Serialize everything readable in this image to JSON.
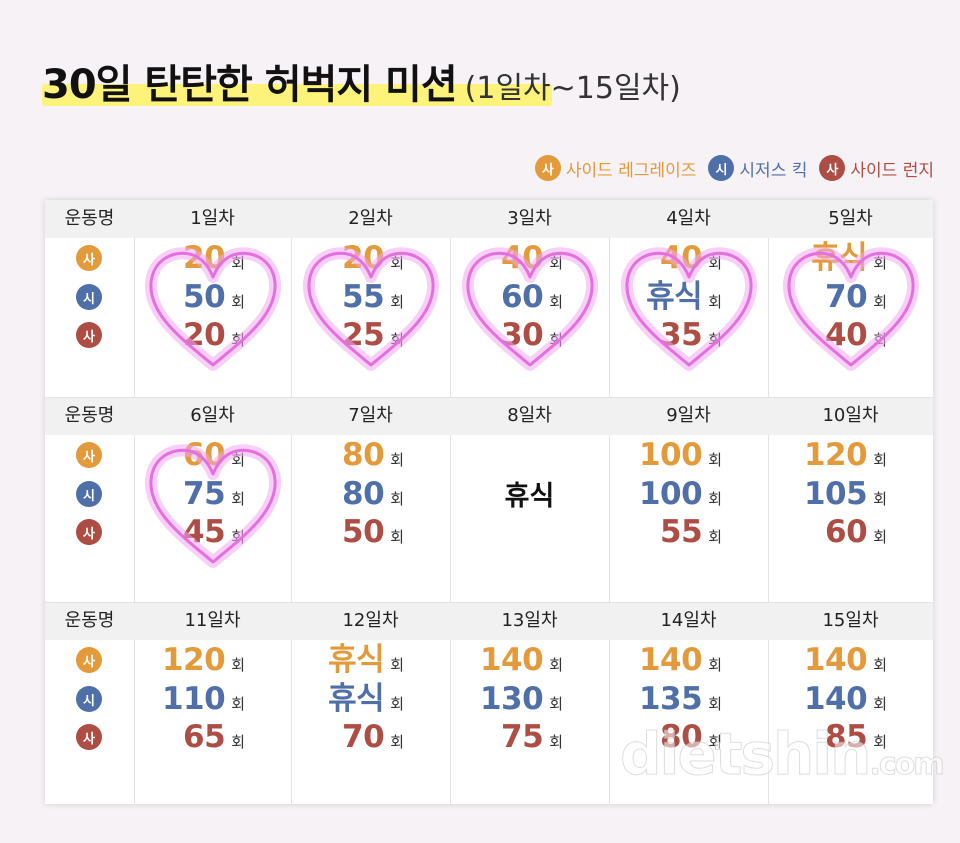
{
  "title": {
    "main": "30일 탄탄한 허벅지 미션",
    "sub": "(1일차~15일차)"
  },
  "legend": [
    {
      "badge": "사",
      "label": "사이드 레그레이즈",
      "color": "#e39a3a"
    },
    {
      "badge": "시",
      "label": "시저스 킥",
      "color": "#4f6fa8"
    },
    {
      "badge": "사",
      "label": "사이드 런지",
      "color": "#ad4d44"
    }
  ],
  "colors": {
    "orange": "#e39a3a",
    "blue": "#4f6fa8",
    "red": "#ad4d44"
  },
  "row_label": "운동명",
  "unit": "회",
  "rest_label": "휴식",
  "blocks": [
    {
      "days": [
        "1일차",
        "2일차",
        "3일차",
        "4일차",
        "5일차"
      ],
      "cells": [
        {
          "a": "20",
          "b": "50",
          "c": "20"
        },
        {
          "a": "20",
          "b": "55",
          "c": "25"
        },
        {
          "a": "40",
          "b": "60",
          "c": "30"
        },
        {
          "a": "40",
          "b": "휴식",
          "c": "35"
        },
        {
          "a": "휴식",
          "b": "70",
          "c": "40"
        }
      ]
    },
    {
      "days": [
        "6일차",
        "7일차",
        "8일차",
        "9일차",
        "10일차"
      ],
      "cells": [
        {
          "a": "60",
          "b": "75",
          "c": "45"
        },
        {
          "a": "80",
          "b": "80",
          "c": "50"
        },
        {
          "rest": true
        },
        {
          "a": "100",
          "b": "100",
          "c": "55"
        },
        {
          "a": "120",
          "b": "105",
          "c": "60"
        }
      ]
    },
    {
      "days": [
        "11일차",
        "12일차",
        "13일차",
        "14일차",
        "15일차"
      ],
      "cells": [
        {
          "a": "120",
          "b": "110",
          "c": "65"
        },
        {
          "a": "휴식",
          "b": "휴식",
          "c": "70"
        },
        {
          "a": "140",
          "b": "130",
          "c": "75"
        },
        {
          "a": "140",
          "b": "135",
          "c": "80"
        },
        {
          "a": "140",
          "b": "140",
          "c": "85"
        }
      ]
    }
  ],
  "completed_hearts": [
    "1일차",
    "2일차",
    "3일차",
    "4일차",
    "5일차",
    "6일차"
  ],
  "watermark": {
    "main": "dietshin",
    "suffix": ".com"
  }
}
